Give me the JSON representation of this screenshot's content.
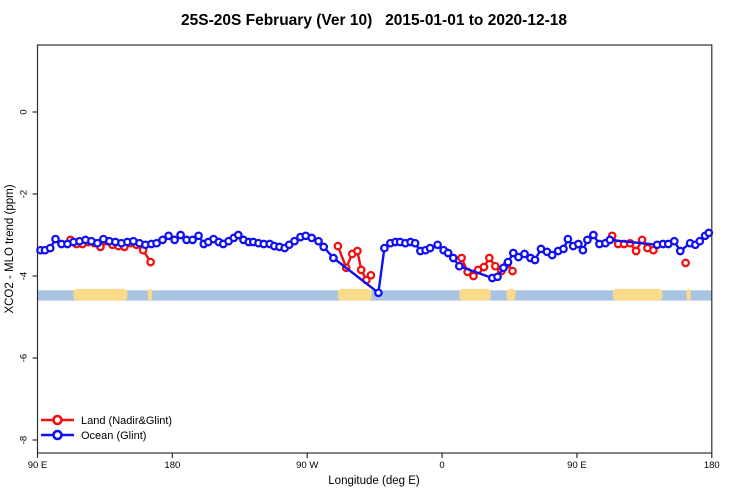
{
  "title": "25S-20S February (Ver 10)   2015-01-01 to 2020-12-18",
  "colors": {
    "land": "#f01010",
    "ocean": "#1010f0",
    "map_ocean": "#a9c3e3",
    "map_land": "#fadb8c",
    "axis": "#303030",
    "marker_fill": "#ffffff"
  },
  "legend": {
    "items": [
      {
        "label": "Land (Nadir&Glint)",
        "series": "land"
      },
      {
        "label": "Ocean (Glint)",
        "series": "ocean"
      }
    ]
  },
  "chart_data": {
    "type": "line",
    "title": "25S-20S February (Ver 10)   2015-01-01 to 2020-12-18",
    "xlabel": "Longitude (deg E)",
    "ylabel": "XCO2 - MLO trend (ppm)",
    "xlim": [
      90,
      540
    ],
    "ylim": [
      -8.3,
      1.6
    ],
    "grid": false,
    "legend_position": "bottom-left",
    "x_axis_note": "longitude axis wraps eastward: 90E, 180, 90W, 0, 90E, 180",
    "x_ticks": [
      {
        "v": 90,
        "label": "90 E"
      },
      {
        "v": 180,
        "label": "180"
      },
      {
        "v": 270,
        "label": "90 W"
      },
      {
        "v": 360,
        "label": "0"
      },
      {
        "v": 450,
        "label": "90 E"
      },
      {
        "v": 540,
        "label": "180"
      }
    ],
    "y_ticks": [
      {
        "v": 0,
        "label": "0"
      },
      {
        "v": -2,
        "label": "-2"
      },
      {
        "v": -4,
        "label": "-4"
      },
      {
        "v": -6,
        "label": "-6"
      },
      {
        "v": -8,
        "label": "-8"
      }
    ],
    "series": [
      {
        "name": "Land (Nadir&Glint)",
        "color_key": "land",
        "segments": [
          [
            [
              112,
              -3.12
            ],
            [
              116,
              -3.22
            ],
            [
              120,
              -3.22
            ],
            [
              124,
              -3.17
            ],
            [
              128,
              -3.2
            ],
            [
              132,
              -3.29
            ],
            [
              136,
              -3.15
            ],
            [
              140,
              -3.24
            ],
            [
              144,
              -3.27
            ],
            [
              148,
              -3.29
            ],
            [
              152,
              -3.2
            ],
            [
              156,
              -3.24
            ],
            [
              160.5,
              -3.37
            ],
            [
              165.5,
              -3.66
            ]
          ],
          [
            [
              290.5,
              -3.27
            ],
            [
              296,
              -3.8
            ],
            [
              300,
              -3.46
            ],
            [
              303.5,
              -3.39
            ],
            [
              306,
              -3.85
            ],
            [
              309.5,
              -4.1
            ],
            [
              312.5,
              -3.98
            ]
          ],
          [
            [
              373,
              -3.56
            ],
            [
              377,
              -3.9
            ],
            [
              381,
              -4.0
            ],
            [
              384,
              -3.85
            ],
            [
              388,
              -3.78
            ],
            [
              391.5,
              -3.56
            ],
            [
              395.5,
              -3.76
            ],
            [
              399.5,
              -3.88
            ],
            [
              403.5,
              -3.71
            ],
            [
              407,
              -3.88
            ]
          ],
          [
            [
              473.5,
              -3.02
            ],
            [
              477.5,
              -3.22
            ],
            [
              481.5,
              -3.22
            ],
            [
              485.5,
              -3.2
            ],
            [
              489.5,
              -3.39
            ],
            [
              493.5,
              -3.12
            ],
            [
              497,
              -3.32
            ],
            [
              501,
              -3.37
            ]
          ],
          [
            [
              522.5,
              -3.68
            ]
          ]
        ]
      },
      {
        "name": "Ocean (Glint)",
        "color_key": "ocean",
        "segments": [
          [
            [
              92,
              -3.37
            ],
            [
              95,
              -3.37
            ],
            [
              98.5,
              -3.32
            ],
            [
              102,
              -3.1
            ],
            [
              106,
              -3.22
            ],
            [
              110,
              -3.22
            ],
            [
              114,
              -3.17
            ],
            [
              118,
              -3.15
            ],
            [
              122,
              -3.12
            ],
            [
              126,
              -3.15
            ],
            [
              130,
              -3.2
            ],
            [
              134,
              -3.1
            ],
            [
              138,
              -3.15
            ],
            [
              142,
              -3.17
            ],
            [
              146,
              -3.2
            ],
            [
              150,
              -3.17
            ],
            [
              154,
              -3.15
            ],
            [
              158,
              -3.2
            ],
            [
              162,
              -3.24
            ],
            [
              166,
              -3.22
            ],
            [
              169.5,
              -3.2
            ],
            [
              173.5,
              -3.12
            ],
            [
              177.5,
              -3.02
            ],
            [
              181.5,
              -3.12
            ],
            [
              185.5,
              -3.0
            ],
            [
              189.5,
              -3.12
            ],
            [
              193.5,
              -3.12
            ],
            [
              197.5,
              -3.02
            ],
            [
              201,
              -3.22
            ],
            [
              204,
              -3.17
            ],
            [
              207.5,
              -3.1
            ],
            [
              211,
              -3.17
            ],
            [
              214,
              -3.22
            ],
            [
              217.5,
              -3.15
            ],
            [
              221,
              -3.07
            ],
            [
              224,
              -3.0
            ],
            [
              227.5,
              -3.12
            ],
            [
              231,
              -3.17
            ],
            [
              234,
              -3.17
            ],
            [
              237.5,
              -3.2
            ],
            [
              241,
              -3.22
            ],
            [
              245,
              -3.22
            ],
            [
              248,
              -3.27
            ],
            [
              251.5,
              -3.29
            ],
            [
              255,
              -3.32
            ],
            [
              258,
              -3.24
            ],
            [
              261.5,
              -3.15
            ],
            [
              265.5,
              -3.05
            ],
            [
              269,
              -3.02
            ],
            [
              273,
              -3.07
            ],
            [
              277.5,
              -3.15
            ],
            [
              281,
              -3.29
            ],
            [
              287.5,
              -3.56
            ],
            [
              317.5,
              -4.41
            ],
            [
              321.5,
              -3.32
            ],
            [
              325.5,
              -3.2
            ],
            [
              329,
              -3.17
            ],
            [
              332,
              -3.17
            ],
            [
              335.5,
              -3.2
            ],
            [
              339,
              -3.17
            ],
            [
              342,
              -3.2
            ],
            [
              345.5,
              -3.39
            ],
            [
              349,
              -3.37
            ],
            [
              352,
              -3.32
            ],
            [
              357,
              -3.24
            ],
            [
              361,
              -3.37
            ],
            [
              364,
              -3.44
            ],
            [
              367.5,
              -3.56
            ],
            [
              371.5,
              -3.76
            ],
            [
              393.5,
              -4.05
            ],
            [
              397,
              -4.02
            ],
            [
              401,
              -3.8
            ],
            [
              404,
              -3.66
            ],
            [
              407.5,
              -3.44
            ],
            [
              411,
              -3.54
            ],
            [
              415,
              -3.46
            ],
            [
              419,
              -3.56
            ],
            [
              422,
              -3.61
            ],
            [
              426,
              -3.34
            ],
            [
              430,
              -3.41
            ],
            [
              433.5,
              -3.49
            ],
            [
              437.5,
              -3.39
            ],
            [
              441,
              -3.34
            ],
            [
              444,
              -3.1
            ],
            [
              447.5,
              -3.27
            ],
            [
              451,
              -3.22
            ],
            [
              454,
              -3.37
            ],
            [
              457,
              -3.12
            ],
            [
              461,
              -3.0
            ],
            [
              465,
              -3.22
            ],
            [
              469,
              -3.2
            ],
            [
              472,
              -3.12
            ],
            [
              503.5,
              -3.24
            ],
            [
              507.5,
              -3.22
            ],
            [
              511,
              -3.22
            ],
            [
              515,
              -3.15
            ],
            [
              519,
              -3.39
            ],
            [
              525.5,
              -3.2
            ],
            [
              529,
              -3.24
            ],
            [
              532,
              -3.15
            ],
            [
              535.5,
              -3.02
            ],
            [
              538,
              -2.95
            ]
          ]
        ]
      }
    ],
    "map_strip": {
      "description": "land/ocean map band across the latitude zone",
      "y_top": -4.35,
      "y_bottom": -4.6,
      "extent": [
        90,
        540
      ],
      "land_segments": [
        [
          114,
          150
        ],
        [
          163.5,
          166.5
        ],
        [
          290.5,
          313
        ],
        [
          371.5,
          392.5
        ],
        [
          403,
          409
        ],
        [
          474,
          507
        ],
        [
          523,
          526
        ]
      ]
    }
  }
}
